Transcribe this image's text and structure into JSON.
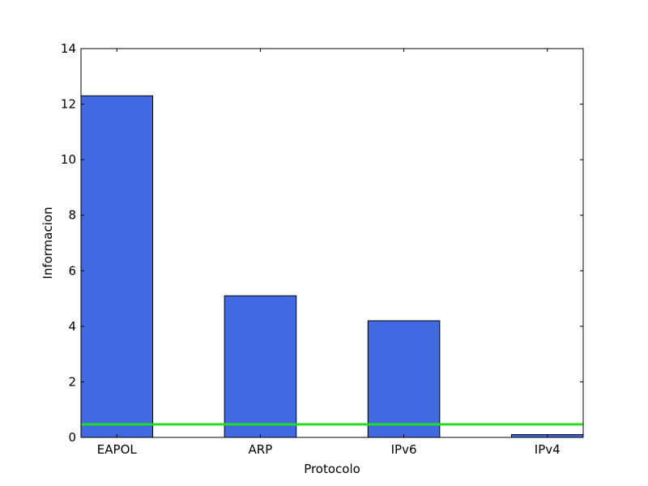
{
  "chart_data": {
    "type": "bar",
    "categories": [
      "EAPOL",
      "ARP",
      "IPv6",
      "IPv4"
    ],
    "values": [
      12.3,
      5.1,
      4.2,
      0.1
    ],
    "xlabel": "Protocolo",
    "ylabel": "Informacion",
    "ylim": [
      0,
      14
    ],
    "yticks": [
      "0",
      "2",
      "4",
      "6",
      "8",
      "10",
      "12",
      "14"
    ],
    "reference_line": {
      "y": 0.47,
      "color": "#22dd22"
    },
    "bar_color": "#4169e1",
    "grid": false,
    "legend": "none"
  }
}
